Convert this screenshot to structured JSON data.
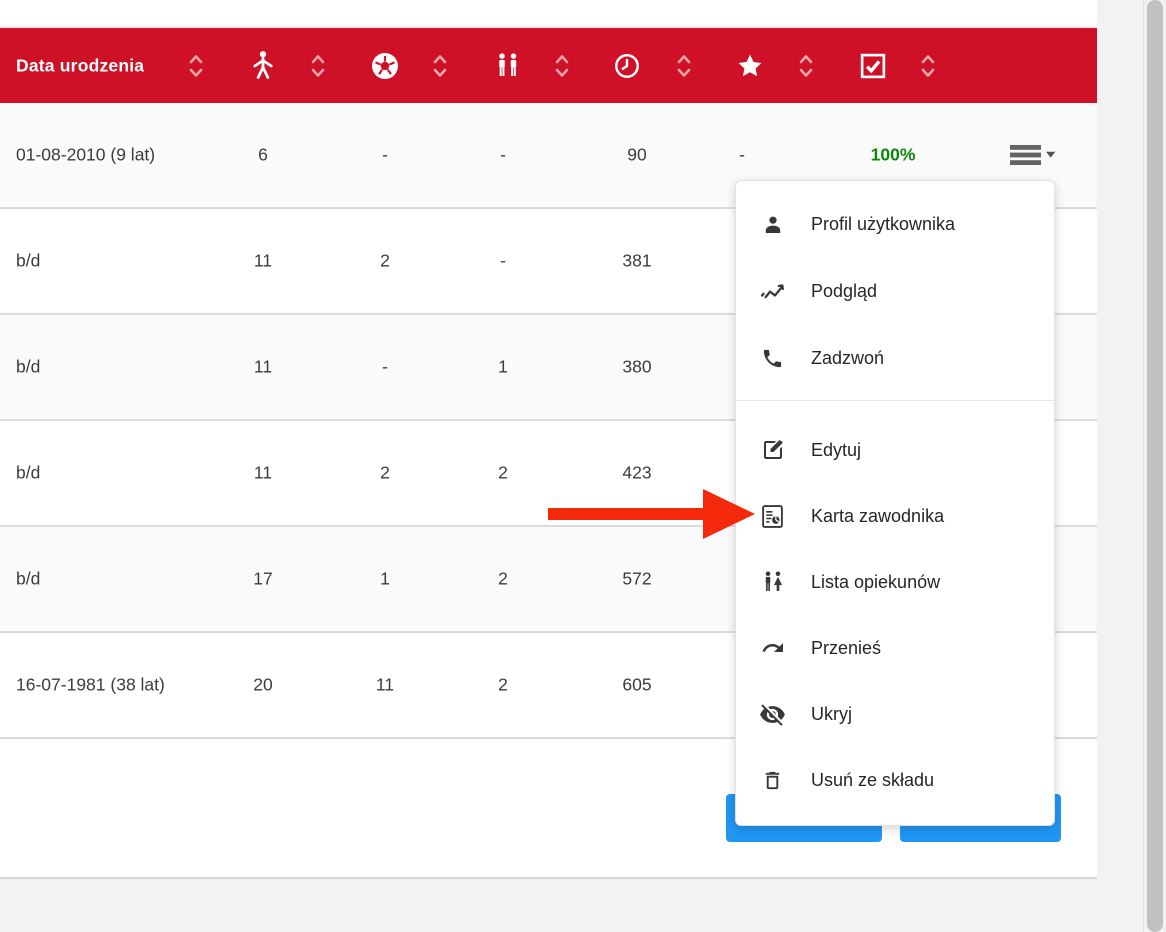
{
  "colors": {
    "header_bg": "#ce1126",
    "accent_green": "#0b870b",
    "button_blue": "#2196f3",
    "arrow_red": "#f4290c"
  },
  "table": {
    "header": {
      "date_column_label": "Data urodzenia",
      "icon_columns": [
        "athlete-icon",
        "soccer-ball-icon",
        "players-icon",
        "clock-icon",
        "star-icon",
        "checkbox-icon"
      ]
    },
    "rows": [
      {
        "date": "01-08-2010 (9 lat)",
        "values": [
          "6",
          "-",
          "-",
          "90",
          "-",
          "100%"
        ],
        "has_menu": true
      },
      {
        "date": "b/d",
        "values": [
          "11",
          "2",
          "-",
          "381"
        ]
      },
      {
        "date": "b/d",
        "values": [
          "11",
          "-",
          "1",
          "380"
        ]
      },
      {
        "date": "b/d",
        "values": [
          "11",
          "2",
          "2",
          "423"
        ]
      },
      {
        "date": "b/d",
        "values": [
          "17",
          "1",
          "2",
          "572"
        ]
      },
      {
        "date": "16-07-1981 (38 lat)",
        "values": [
          "20",
          "11",
          "2",
          "605"
        ]
      }
    ]
  },
  "context_menu": {
    "groups": [
      {
        "items": [
          {
            "icon": "user-icon",
            "label": "Profil użytkownika"
          },
          {
            "icon": "trend-icon",
            "label": "Podgląd"
          },
          {
            "icon": "phone-icon",
            "label": "Zadzwoń"
          }
        ]
      },
      {
        "items": [
          {
            "icon": "edit-icon",
            "label": "Edytuj"
          },
          {
            "icon": "player-card-icon",
            "label": "Karta zawodnika"
          },
          {
            "icon": "guardians-icon",
            "label": "Lista opiekunów"
          },
          {
            "icon": "move-icon",
            "label": "Przenieś"
          },
          {
            "icon": "hide-icon",
            "label": "Ukryj"
          },
          {
            "icon": "delete-icon",
            "label": "Usuń ze składu"
          }
        ]
      }
    ]
  },
  "annotation": {
    "arrow_points_to": "Karta zawodnika"
  },
  "footer": {
    "buttons": [
      {
        "label": ""
      },
      {
        "label": ""
      }
    ]
  }
}
